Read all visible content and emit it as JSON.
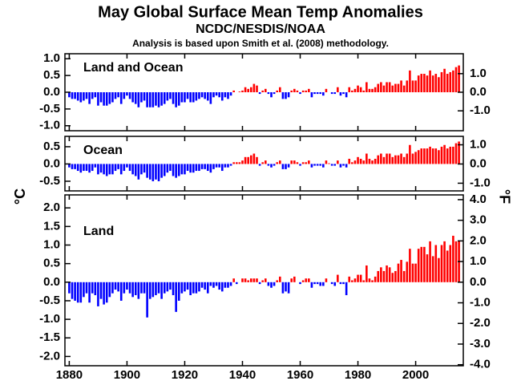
{
  "title": "May Global Surface Mean Temp Anomalies",
  "subtitle": "NCDC/NESDIS/NOAA",
  "note": "Analysis is based upon Smith et al. (2008) methodology.",
  "ylabel": "°C",
  "y2label": "°F",
  "colors": {
    "positive": "#ff0000",
    "negative": "#0000ff"
  },
  "chart_data": [
    {
      "type": "bar",
      "label": "Land and Ocean",
      "xlim": [
        1878.5,
        2016.5
      ],
      "ylim": [
        -1.15,
        1.15
      ],
      "yticks": [
        {
          "value": 1,
          "label": "1.0"
        },
        0.5,
        {
          "value": 0,
          "label": "0.0"
        },
        -0.5,
        {
          "value": -1,
          "label": "-1.0"
        }
      ],
      "y2lim": [
        -2.07,
        2.07
      ],
      "y2ticks": [
        {
          "value": 1,
          "label": "1.0"
        },
        {
          "value": 0,
          "label": "0.0"
        },
        {
          "value": -1,
          "label": "-1.0"
        }
      ],
      "x": [
        1880,
        1881,
        1882,
        1883,
        1884,
        1885,
        1886,
        1887,
        1888,
        1889,
        1890,
        1891,
        1892,
        1893,
        1894,
        1895,
        1896,
        1897,
        1898,
        1899,
        1900,
        1901,
        1902,
        1903,
        1904,
        1905,
        1906,
        1907,
        1908,
        1909,
        1910,
        1911,
        1912,
        1913,
        1914,
        1915,
        1916,
        1917,
        1918,
        1919,
        1920,
        1921,
        1922,
        1923,
        1924,
        1925,
        1926,
        1927,
        1928,
        1929,
        1930,
        1931,
        1932,
        1933,
        1934,
        1935,
        1936,
        1937,
        1938,
        1939,
        1940,
        1941,
        1942,
        1943,
        1944,
        1945,
        1946,
        1947,
        1948,
        1949,
        1950,
        1951,
        1952,
        1953,
        1954,
        1955,
        1956,
        1957,
        1958,
        1959,
        1960,
        1961,
        1962,
        1963,
        1964,
        1965,
        1966,
        1967,
        1968,
        1969,
        1970,
        1971,
        1972,
        1973,
        1974,
        1975,
        1976,
        1977,
        1978,
        1979,
        1980,
        1981,
        1982,
        1983,
        1984,
        1985,
        1986,
        1987,
        1988,
        1989,
        1990,
        1991,
        1992,
        1993,
        1994,
        1995,
        1996,
        1997,
        1998,
        1999,
        2000,
        2001,
        2002,
        2003,
        2004,
        2005,
        2006,
        2007,
        2008,
        2009,
        2010,
        2011,
        2012,
        2013,
        2014,
        2015
      ],
      "values": [
        -0.15,
        -0.2,
        -0.2,
        -0.25,
        -0.3,
        -0.25,
        -0.2,
        -0.35,
        -0.2,
        -0.15,
        -0.4,
        -0.3,
        -0.4,
        -0.4,
        -0.35,
        -0.3,
        -0.2,
        -0.15,
        -0.35,
        -0.2,
        -0.1,
        -0.2,
        -0.3,
        -0.35,
        -0.45,
        -0.3,
        -0.25,
        -0.45,
        -0.45,
        -0.45,
        -0.4,
        -0.45,
        -0.4,
        -0.35,
        -0.25,
        -0.2,
        -0.35,
        -0.45,
        -0.4,
        -0.3,
        -0.3,
        -0.2,
        -0.3,
        -0.3,
        -0.25,
        -0.2,
        -0.15,
        -0.2,
        -0.25,
        -0.35,
        -0.15,
        -0.1,
        -0.15,
        -0.25,
        -0.15,
        -0.2,
        -0.1,
        0.05,
        0.0,
        0.02,
        0.05,
        0.15,
        0.1,
        0.15,
        0.25,
        0.2,
        -0.05,
        0.05,
        0.1,
        -0.05,
        -0.15,
        -0.05,
        0.05,
        0.15,
        -0.2,
        -0.2,
        -0.15,
        0.05,
        0.1,
        0.05,
        -0.05,
        0.05,
        0.05,
        0.1,
        -0.15,
        -0.05,
        -0.05,
        -0.05,
        -0.1,
        0.1,
        0.0,
        -0.05,
        -0.05,
        0.15,
        -0.1,
        -0.05,
        -0.15,
        0.15,
        0.05,
        0.1,
        0.2,
        0.15,
        0.05,
        0.3,
        0.1,
        0.1,
        0.15,
        0.25,
        0.3,
        0.2,
        0.3,
        0.3,
        0.2,
        0.25,
        0.25,
        0.35,
        0.2,
        0.35,
        0.65,
        0.35,
        0.35,
        0.5,
        0.55,
        0.55,
        0.5,
        0.65,
        0.5,
        0.55,
        0.45,
        0.6,
        0.7,
        0.55,
        0.6,
        0.65,
        0.75,
        0.8
      ]
    },
    {
      "type": "bar",
      "label": "Ocean",
      "xlim": [
        1878.5,
        2016.5
      ],
      "ylim": [
        -0.78,
        0.8
      ],
      "yticks": [
        0.5,
        {
          "value": 0,
          "label": "0.0"
        },
        -0.5
      ],
      "y2lim": [
        -1.4,
        1.44
      ],
      "y2ticks": [
        {
          "value": 1,
          "label": "1.0"
        },
        {
          "value": 0,
          "label": "0.0"
        },
        {
          "value": -1,
          "label": "-1.0"
        }
      ],
      "x": [
        1880,
        1881,
        1882,
        1883,
        1884,
        1885,
        1886,
        1887,
        1888,
        1889,
        1890,
        1891,
        1892,
        1893,
        1894,
        1895,
        1896,
        1897,
        1898,
        1899,
        1900,
        1901,
        1902,
        1903,
        1904,
        1905,
        1906,
        1907,
        1908,
        1909,
        1910,
        1911,
        1912,
        1913,
        1914,
        1915,
        1916,
        1917,
        1918,
        1919,
        1920,
        1921,
        1922,
        1923,
        1924,
        1925,
        1926,
        1927,
        1928,
        1929,
        1930,
        1931,
        1932,
        1933,
        1934,
        1935,
        1936,
        1937,
        1938,
        1939,
        1940,
        1941,
        1942,
        1943,
        1944,
        1945,
        1946,
        1947,
        1948,
        1949,
        1950,
        1951,
        1952,
        1953,
        1954,
        1955,
        1956,
        1957,
        1958,
        1959,
        1960,
        1961,
        1962,
        1963,
        1964,
        1965,
        1966,
        1967,
        1968,
        1969,
        1970,
        1971,
        1972,
        1973,
        1974,
        1975,
        1976,
        1977,
        1978,
        1979,
        1980,
        1981,
        1982,
        1983,
        1984,
        1985,
        1986,
        1987,
        1988,
        1989,
        1990,
        1991,
        1992,
        1993,
        1994,
        1995,
        1996,
        1997,
        1998,
        1999,
        2000,
        2001,
        2002,
        2003,
        2004,
        2005,
        2006,
        2007,
        2008,
        2009,
        2010,
        2011,
        2012,
        2013,
        2014,
        2015
      ],
      "values": [
        -0.1,
        -0.15,
        -0.15,
        -0.2,
        -0.25,
        -0.2,
        -0.2,
        -0.25,
        -0.2,
        -0.1,
        -0.3,
        -0.25,
        -0.3,
        -0.35,
        -0.3,
        -0.3,
        -0.2,
        -0.15,
        -0.3,
        -0.2,
        -0.1,
        -0.2,
        -0.3,
        -0.35,
        -0.45,
        -0.3,
        -0.25,
        -0.4,
        -0.45,
        -0.5,
        -0.45,
        -0.5,
        -0.4,
        -0.35,
        -0.25,
        -0.2,
        -0.35,
        -0.4,
        -0.35,
        -0.3,
        -0.3,
        -0.2,
        -0.25,
        -0.25,
        -0.2,
        -0.2,
        -0.15,
        -0.15,
        -0.2,
        -0.25,
        -0.15,
        -0.1,
        -0.1,
        -0.2,
        -0.1,
        -0.1,
        -0.05,
        0.05,
        0.05,
        0.05,
        0.1,
        0.2,
        0.2,
        0.25,
        0.3,
        0.2,
        -0.05,
        0.05,
        0.1,
        -0.05,
        -0.1,
        -0.05,
        0.05,
        0.1,
        -0.15,
        -0.15,
        -0.1,
        0.1,
        0.1,
        0.05,
        -0.05,
        0.05,
        0.05,
        0.1,
        -0.1,
        -0.05,
        -0.05,
        -0.05,
        -0.1,
        0.1,
        0.02,
        -0.05,
        -0.05,
        0.1,
        -0.1,
        -0.05,
        -0.1,
        0.15,
        0.05,
        0.1,
        0.2,
        0.15,
        0.1,
        0.3,
        0.15,
        0.1,
        0.15,
        0.25,
        0.3,
        0.2,
        0.3,
        0.3,
        0.2,
        0.25,
        0.25,
        0.3,
        0.2,
        0.3,
        0.55,
        0.3,
        0.35,
        0.4,
        0.45,
        0.45,
        0.45,
        0.5,
        0.45,
        0.45,
        0.4,
        0.5,
        0.55,
        0.45,
        0.5,
        0.5,
        0.6,
        0.65
      ]
    },
    {
      "type": "bar",
      "label": "Land",
      "xlim": [
        1878.5,
        2016.5
      ],
      "ylim": [
        -2.25,
        2.35
      ],
      "yticks": [
        {
          "value": 2,
          "label": "2.0"
        },
        1.5,
        {
          "value": 1,
          "label": "1.0"
        },
        0.5,
        {
          "value": 0,
          "label": "0.0"
        },
        -0.5,
        {
          "value": -1,
          "label": "-1.0"
        },
        -1.5,
        {
          "value": -2,
          "label": "-2.0"
        }
      ],
      "y2lim": [
        -4.05,
        4.23
      ],
      "y2ticks": [
        {
          "value": 4,
          "label": "4.0"
        },
        {
          "value": 3,
          "label": "3.0"
        },
        {
          "value": 2,
          "label": "2.0"
        },
        {
          "value": 1,
          "label": "1.0"
        },
        {
          "value": 0,
          "label": "0.0"
        },
        {
          "value": -1,
          "label": "-1.0"
        },
        {
          "value": -2,
          "label": "-2.0"
        },
        {
          "value": -3,
          "label": "-3.0"
        },
        {
          "value": -4,
          "label": "-4.0"
        }
      ],
      "xticks": [
        1880,
        1900,
        1920,
        1940,
        1960,
        1980,
        2000
      ],
      "x": [
        1880,
        1881,
        1882,
        1883,
        1884,
        1885,
        1886,
        1887,
        1888,
        1889,
        1890,
        1891,
        1892,
        1893,
        1894,
        1895,
        1896,
        1897,
        1898,
        1899,
        1900,
        1901,
        1902,
        1903,
        1904,
        1905,
        1906,
        1907,
        1908,
        1909,
        1910,
        1911,
        1912,
        1913,
        1914,
        1915,
        1916,
        1917,
        1918,
        1919,
        1920,
        1921,
        1922,
        1923,
        1924,
        1925,
        1926,
        1927,
        1928,
        1929,
        1930,
        1931,
        1932,
        1933,
        1934,
        1935,
        1936,
        1937,
        1938,
        1939,
        1940,
        1941,
        1942,
        1943,
        1944,
        1945,
        1946,
        1947,
        1948,
        1949,
        1950,
        1951,
        1952,
        1953,
        1954,
        1955,
        1956,
        1957,
        1958,
        1959,
        1960,
        1961,
        1962,
        1963,
        1964,
        1965,
        1966,
        1967,
        1968,
        1969,
        1970,
        1971,
        1972,
        1973,
        1974,
        1975,
        1976,
        1977,
        1978,
        1979,
        1980,
        1981,
        1982,
        1983,
        1984,
        1985,
        1986,
        1987,
        1988,
        1989,
        1990,
        1991,
        1992,
        1993,
        1994,
        1995,
        1996,
        1997,
        1998,
        1999,
        2000,
        2001,
        2002,
        2003,
        2004,
        2005,
        2006,
        2007,
        2008,
        2009,
        2010,
        2011,
        2012,
        2013,
        2014,
        2015
      ],
      "values": [
        -0.3,
        -0.45,
        -0.5,
        -0.55,
        -0.55,
        -0.4,
        -0.3,
        -0.55,
        -0.3,
        -0.35,
        -0.65,
        -0.45,
        -0.6,
        -0.55,
        -0.4,
        -0.3,
        -0.2,
        -0.25,
        -0.5,
        -0.3,
        -0.2,
        -0.3,
        -0.4,
        -0.35,
        -0.45,
        -0.3,
        -0.3,
        -0.95,
        -0.45,
        -0.4,
        -0.35,
        -0.3,
        -0.45,
        -0.3,
        -0.25,
        -0.2,
        -0.35,
        -0.8,
        -0.5,
        -0.3,
        -0.25,
        -0.2,
        -0.35,
        -0.3,
        -0.3,
        -0.25,
        -0.15,
        -0.2,
        -0.3,
        -0.1,
        -0.15,
        -0.1,
        -0.2,
        -0.25,
        -0.15,
        -0.15,
        -0.1,
        0.1,
        -0.05,
        0.0,
        0.1,
        0.1,
        0.05,
        0.1,
        0.1,
        0.1,
        -0.05,
        0.05,
        0.1,
        -0.1,
        -0.15,
        -0.1,
        0.05,
        0.15,
        -0.3,
        -0.25,
        -0.3,
        0.1,
        0.15,
        0.0,
        -0.05,
        0.05,
        0.1,
        0.1,
        -0.15,
        -0.05,
        -0.05,
        -0.1,
        -0.1,
        0.1,
        0.0,
        -0.05,
        -0.1,
        0.2,
        -0.05,
        -0.05,
        -0.35,
        0.15,
        0.05,
        0.1,
        0.2,
        0.2,
        0.05,
        0.45,
        0.1,
        0.05,
        0.15,
        0.3,
        0.4,
        0.3,
        0.45,
        0.4,
        0.25,
        0.3,
        0.5,
        0.6,
        0.3,
        0.55,
        0.9,
        0.5,
        0.5,
        0.9,
        0.95,
        0.95,
        0.75,
        1.1,
        0.7,
        1.0,
        0.65,
        1.0,
        1.1,
        0.85,
        1.0,
        1.25,
        1.1,
        1.1
      ]
    }
  ]
}
